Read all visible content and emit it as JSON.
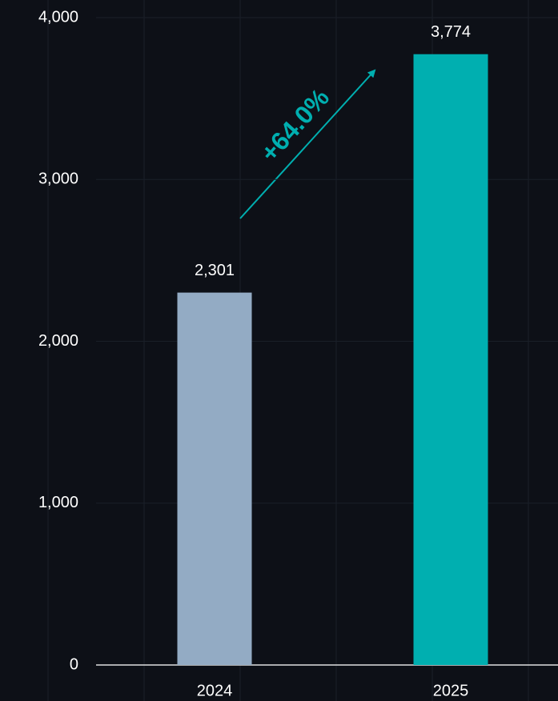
{
  "chart_data": {
    "type": "bar",
    "categories": [
      "2024",
      "2025"
    ],
    "values": [
      2301,
      3774
    ],
    "value_labels": [
      "2,301",
      "3,774"
    ],
    "colors": [
      "#93abc4",
      "#00afb0"
    ],
    "annotation": "+64.0%",
    "ylim": [
      0,
      4000
    ],
    "yticks": [
      0,
      {
        "value": 1000,
        "label": "1,000"
      },
      {
        "value": 2000,
        "label": "2,000"
      },
      {
        "value": 3000,
        "label": "3,000"
      },
      {
        "value": 4000,
        "label": "4,000"
      }
    ],
    "grid": true
  }
}
